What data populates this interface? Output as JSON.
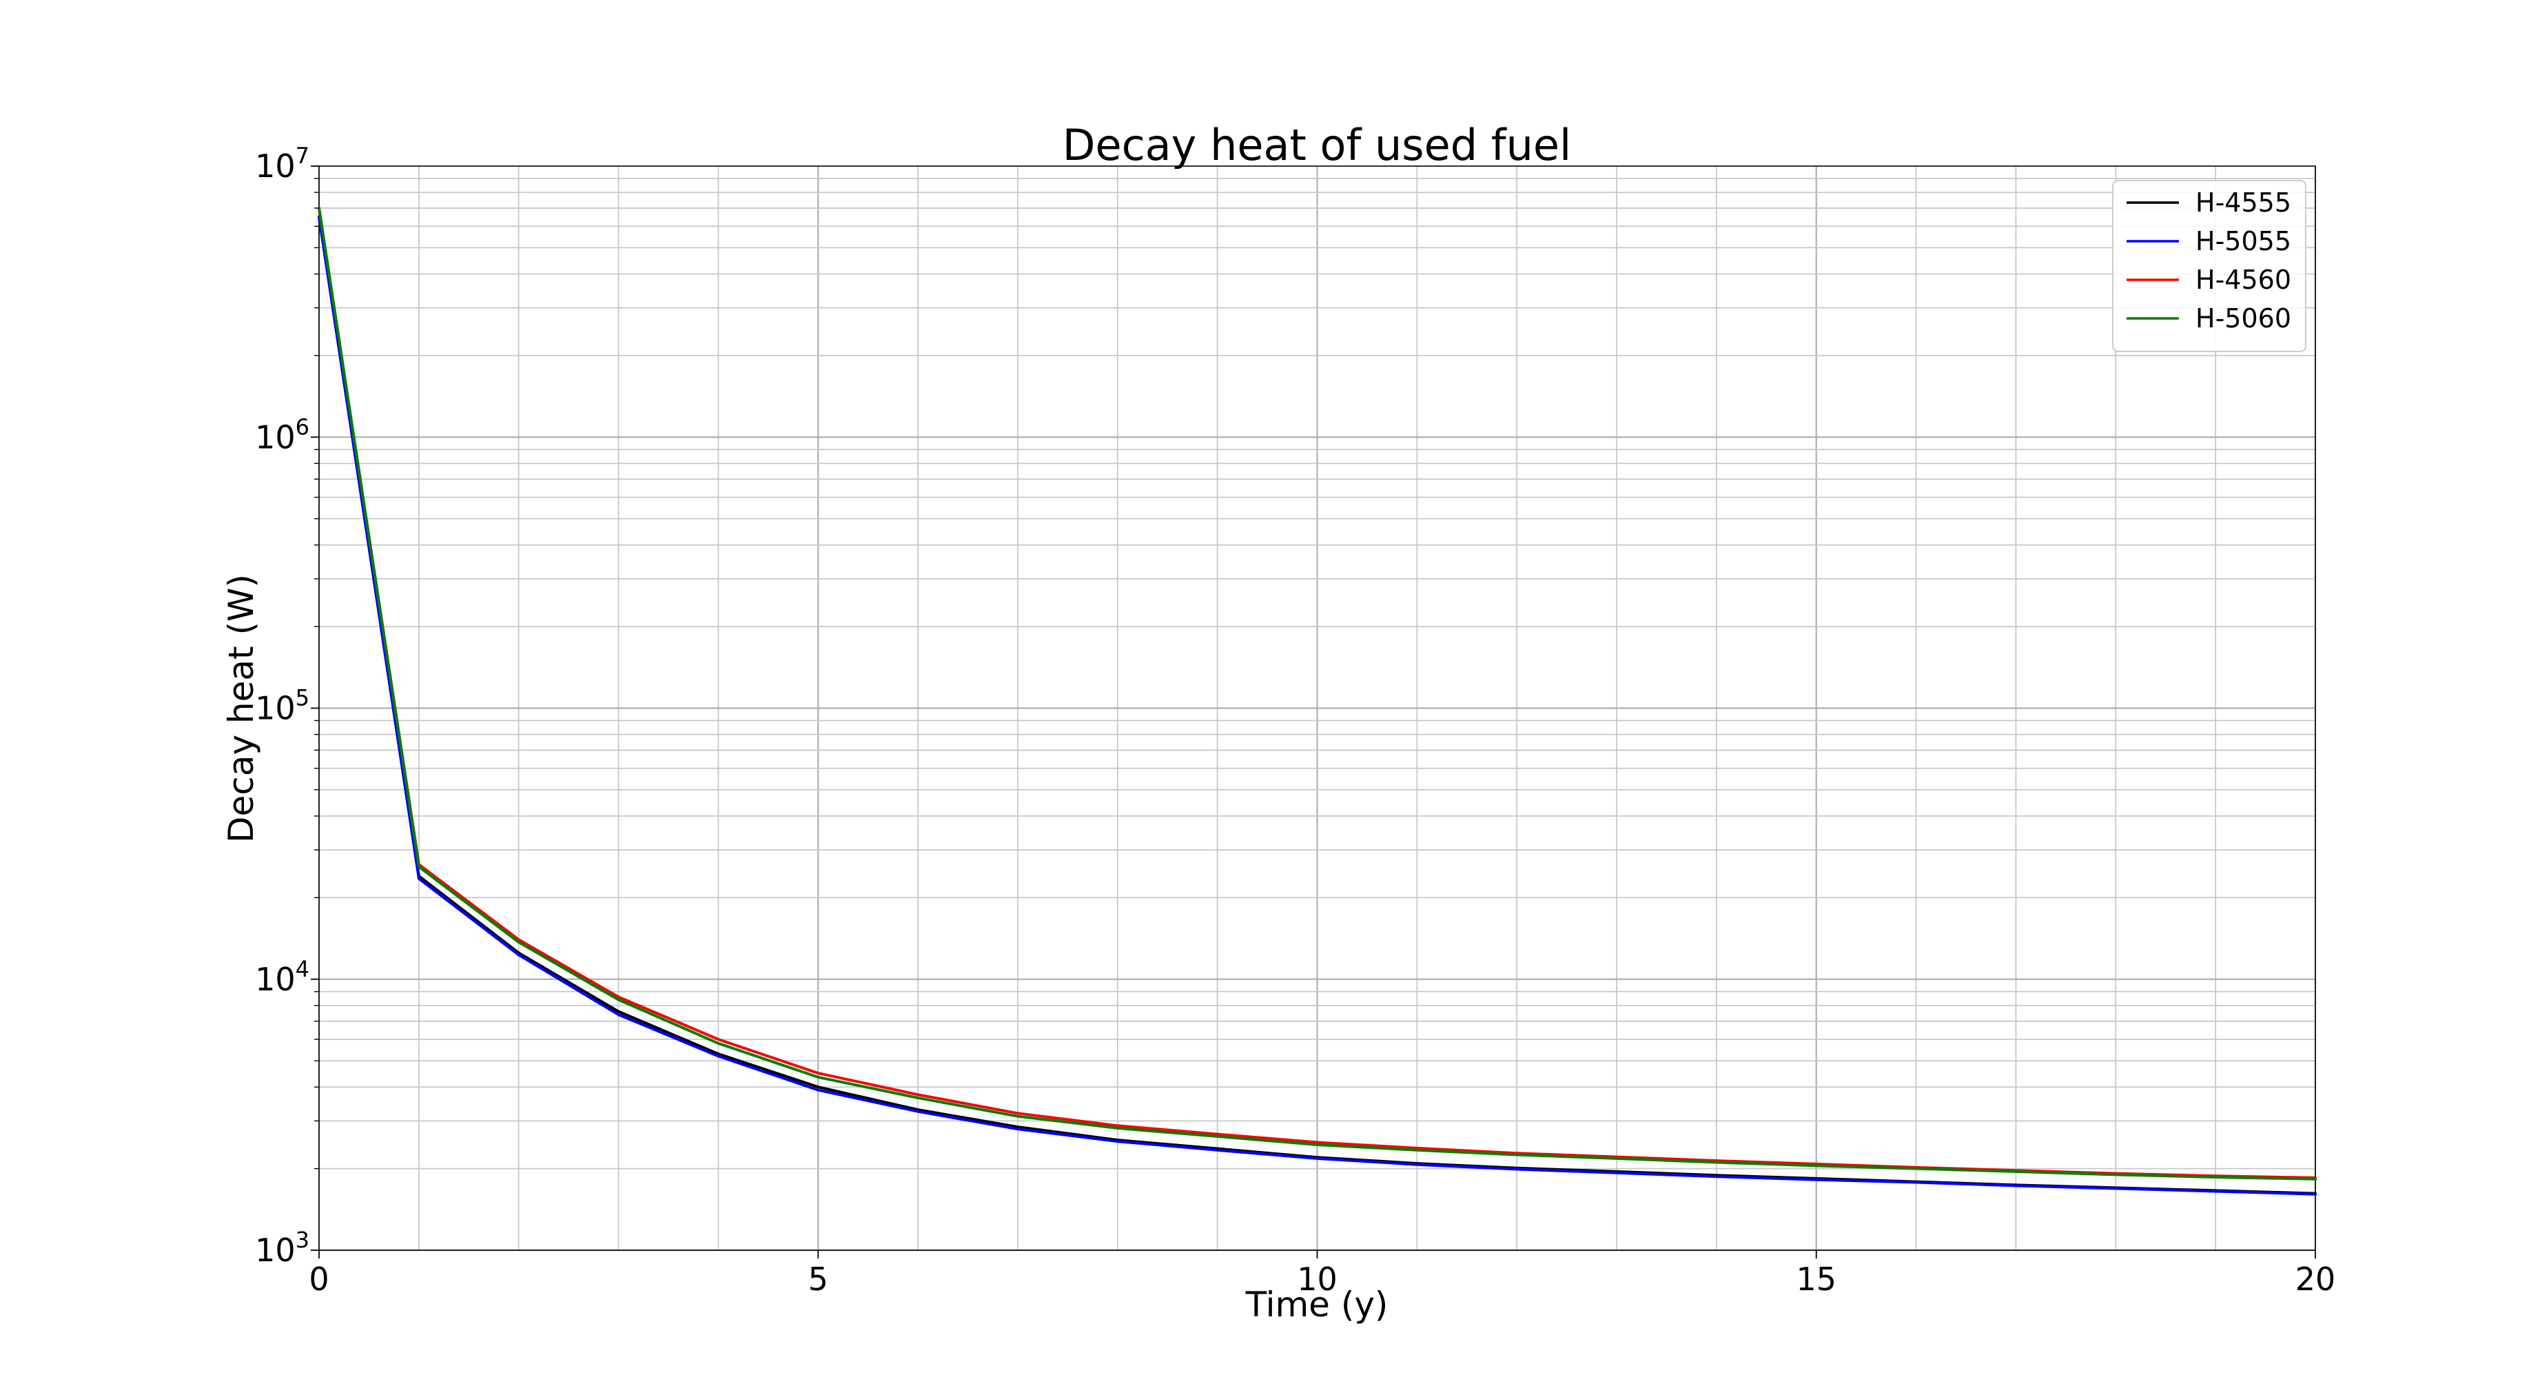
{
  "chart_data": {
    "type": "line",
    "title": "Decay heat of used fuel",
    "xlabel": "Time (y)",
    "ylabel": "Decay heat (W)",
    "xlim": [
      0,
      20
    ],
    "ylim": [
      1000,
      10000000
    ],
    "yscale": "log",
    "grid": "major and minor",
    "legend_position": "top-right",
    "xticks": [
      0,
      5,
      10,
      15,
      20
    ],
    "xtick_labels": [
      "0",
      "5",
      "10",
      "15",
      "20"
    ],
    "yticks": [
      1000,
      10000,
      100000,
      1000000,
      10000000
    ],
    "ytick_labels": [
      {
        "base": "10",
        "exp": "3"
      },
      {
        "base": "10",
        "exp": "4"
      },
      {
        "base": "10",
        "exp": "5"
      },
      {
        "base": "10",
        "exp": "6"
      },
      {
        "base": "10",
        "exp": "7"
      }
    ],
    "x": [
      0,
      1,
      2,
      3,
      4,
      5,
      6,
      7,
      8,
      9,
      10,
      11,
      12,
      13,
      14,
      15,
      16,
      17,
      18,
      19,
      20
    ],
    "series": [
      {
        "name": "H-4555",
        "color": "#000000",
        "values": [
          6500000,
          24000,
          12500,
          7600,
          5300,
          4000,
          3300,
          2850,
          2550,
          2370,
          2200,
          2090,
          2010,
          1950,
          1890,
          1840,
          1790,
          1740,
          1700,
          1660,
          1620
        ]
      },
      {
        "name": "H-5055",
        "color": "#0000ff",
        "values": [
          6500000,
          23500,
          12300,
          7400,
          5200,
          3900,
          3250,
          2800,
          2520,
          2340,
          2180,
          2070,
          1990,
          1930,
          1870,
          1820,
          1780,
          1730,
          1690,
          1650,
          1610
        ]
      },
      {
        "name": "H-4560",
        "color": "#ff0000",
        "values": [
          7000000,
          26500,
          14000,
          8600,
          6000,
          4500,
          3750,
          3200,
          2880,
          2680,
          2500,
          2380,
          2280,
          2210,
          2140,
          2080,
          2020,
          1970,
          1920,
          1880,
          1850
        ]
      },
      {
        "name": "H-5060",
        "color": "#008000",
        "values": [
          7000000,
          26000,
          13700,
          8400,
          5800,
          4350,
          3650,
          3120,
          2820,
          2630,
          2450,
          2340,
          2250,
          2180,
          2110,
          2050,
          2000,
          1950,
          1900,
          1860,
          1830
        ]
      }
    ]
  }
}
